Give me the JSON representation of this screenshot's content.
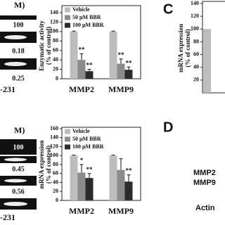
{
  "left_top": {
    "header": "M)",
    "ratios": [
      100,
      0.18,
      0.25
    ],
    "cell_line": "-231"
  },
  "left_bottom": {
    "header": "M)",
    "ratios": [
      100,
      0.45,
      0.56
    ],
    "cell_line": "-231"
  },
  "panel_c": {
    "label": "C"
  },
  "panel_d": {
    "label": "D",
    "rows": [
      "MMP2",
      "MMP9",
      "Actin"
    ]
  },
  "chart_data": [
    {
      "type": "bar",
      "ylabel": [
        "Enzymatic activity",
        "(% of control)"
      ],
      "categories": [
        "MMP2",
        "MMP9"
      ],
      "ylim": [
        0,
        140
      ],
      "yticks": [
        0,
        20,
        40,
        60,
        80,
        100,
        120,
        140
      ],
      "series": [
        {
          "name": "Vehicle",
          "color": "#bdbdbd",
          "values": [
            100,
            100
          ],
          "errors": [
            1,
            1
          ],
          "significance": [
            null,
            null
          ]
        },
        {
          "name": "50 μM BBR",
          "color": "#8c8c8c",
          "values": [
            40,
            32
          ],
          "errors": [
            13,
            10
          ],
          "significance": [
            "**",
            "**"
          ]
        },
        {
          "name": "100 μM BBR",
          "color": "#2b2b2b",
          "values": [
            16,
            19
          ],
          "errors": [
            4,
            6
          ],
          "significance": [
            "**",
            "**"
          ]
        }
      ]
    },
    {
      "type": "bar",
      "ylabel": [
        "mRNA expression",
        "(% of control)"
      ],
      "categories": [
        "MMP2",
        "MMP9"
      ],
      "ylim": [
        0,
        160
      ],
      "yticks": [
        0,
        20,
        40,
        60,
        80,
        100,
        120,
        140,
        160
      ],
      "series": [
        {
          "name": "Vehicle",
          "color": "#bdbdbd",
          "values": [
            100,
            100
          ],
          "errors": [
            1,
            1
          ],
          "significance": [
            null,
            null
          ]
        },
        {
          "name": "50 μM BBR",
          "color": "#8c8c8c",
          "values": [
            62,
            68
          ],
          "errors": [
            18,
            25
          ],
          "significance": [
            "*",
            null
          ]
        },
        {
          "name": "100 μM BBR",
          "color": "#2b2b2b",
          "values": [
            50,
            42
          ],
          "errors": [
            10,
            15
          ],
          "significance": [
            "**",
            "**"
          ]
        }
      ]
    },
    {
      "type": "bar",
      "ylabel": [
        "mRNA expression",
        "(% of control)"
      ],
      "categories": [
        null
      ],
      "ylim": [
        0,
        140
      ],
      "yticks": [
        20,
        40,
        60,
        80,
        100,
        120,
        140
      ],
      "series": [
        {
          "color": "#bdbdbd",
          "values": [
            100
          ]
        }
      ]
    }
  ]
}
